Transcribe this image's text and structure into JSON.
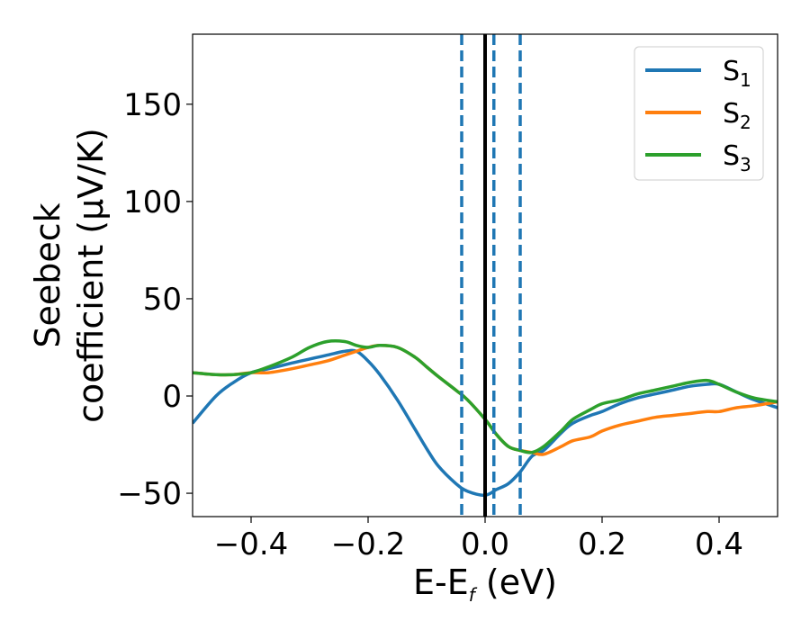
{
  "chart_data": {
    "type": "line",
    "xlabel_main": "E-E",
    "xlabel_sub": "f",
    "xlabel_unit": " (eV)",
    "ylabel_line1": "Seebeck",
    "ylabel_line2": "coefficient  (μV/K)",
    "xlim": [
      -0.5,
      0.5
    ],
    "ylim": [
      -62,
      186
    ],
    "xticks": [
      -0.4,
      -0.2,
      0.0,
      0.2,
      0.4
    ],
    "xtick_labels": [
      "−0.4",
      "−0.2",
      "0.0",
      "0.2",
      "0.4"
    ],
    "yticks": [
      -50,
      0,
      50,
      100,
      150
    ],
    "ytick_labels": [
      "−50",
      "0",
      "50",
      "100",
      "150"
    ],
    "legend_position": "top-right",
    "fermi_line": {
      "x": 0.0,
      "color": "#000000",
      "style": "solid"
    },
    "dashed_lines": {
      "x": [
        -0.04,
        0.015,
        0.06
      ],
      "color": "#1f77b4",
      "style": "dashed"
    },
    "series": [
      {
        "name_main": "S",
        "name_sub": "1",
        "color": "#1f77b4",
        "x": [
          -0.5,
          -0.46,
          -0.43,
          -0.4,
          -0.37,
          -0.33,
          -0.3,
          -0.27,
          -0.24,
          -0.22,
          -0.2,
          -0.18,
          -0.15,
          -0.12,
          -0.1,
          -0.08,
          -0.05,
          -0.03,
          0.0,
          0.02,
          0.04,
          0.06,
          0.08,
          0.1,
          0.13,
          0.15,
          0.18,
          0.2,
          0.23,
          0.26,
          0.29,
          0.32,
          0.35,
          0.38,
          0.4,
          0.43,
          0.46,
          0.5
        ],
        "y": [
          -14,
          0,
          7,
          12,
          14,
          17,
          19,
          21,
          23,
          23,
          18,
          11,
          -2,
          -17,
          -27,
          -36,
          -45,
          -49,
          -51,
          -48,
          -45,
          -39,
          -31,
          -28,
          -19,
          -14,
          -10,
          -8,
          -4,
          -1,
          1,
          3,
          5,
          6,
          6,
          2,
          -2,
          -6
        ]
      },
      {
        "name_main": "S",
        "name_sub": "2",
        "color": "#ff7f0e",
        "x": [
          -0.5,
          -0.46,
          -0.43,
          -0.4,
          -0.37,
          -0.33,
          -0.3,
          -0.27,
          -0.24,
          -0.22,
          -0.2,
          -0.18,
          -0.15,
          -0.12,
          -0.1,
          -0.08,
          -0.05,
          -0.03,
          0.0,
          0.02,
          0.04,
          0.06,
          0.08,
          0.1,
          0.13,
          0.15,
          0.18,
          0.2,
          0.23,
          0.26,
          0.29,
          0.32,
          0.35,
          0.38,
          0.4,
          0.43,
          0.46,
          0.5
        ],
        "y": [
          12,
          11,
          11,
          12,
          12,
          14,
          16,
          18,
          21,
          23,
          25,
          26,
          25,
          20,
          15,
          10,
          3,
          -2,
          -12,
          -20,
          -26,
          -28,
          -29,
          -30,
          -26,
          -23,
          -21,
          -18,
          -15,
          -13,
          -11,
          -10,
          -9,
          -8,
          -8,
          -6,
          -5,
          -3
        ]
      },
      {
        "name_main": "S",
        "name_sub": "3",
        "color": "#2ca02c",
        "x": [
          -0.5,
          -0.46,
          -0.43,
          -0.4,
          -0.37,
          -0.33,
          -0.3,
          -0.27,
          -0.24,
          -0.22,
          -0.2,
          -0.18,
          -0.15,
          -0.12,
          -0.1,
          -0.08,
          -0.05,
          -0.03,
          0.0,
          0.02,
          0.04,
          0.06,
          0.08,
          0.1,
          0.13,
          0.15,
          0.18,
          0.2,
          0.23,
          0.26,
          0.29,
          0.32,
          0.35,
          0.38,
          0.4,
          0.43,
          0.46,
          0.5
        ],
        "y": [
          12,
          11,
          11,
          12,
          15,
          20,
          25,
          28,
          28,
          26,
          25,
          26,
          25,
          20,
          15,
          10,
          3,
          -2,
          -12,
          -20,
          -26,
          -28,
          -29,
          -26,
          -18,
          -12,
          -7,
          -4,
          -2,
          1,
          3,
          5,
          7,
          8,
          6,
          2,
          -1,
          -3
        ]
      }
    ]
  }
}
